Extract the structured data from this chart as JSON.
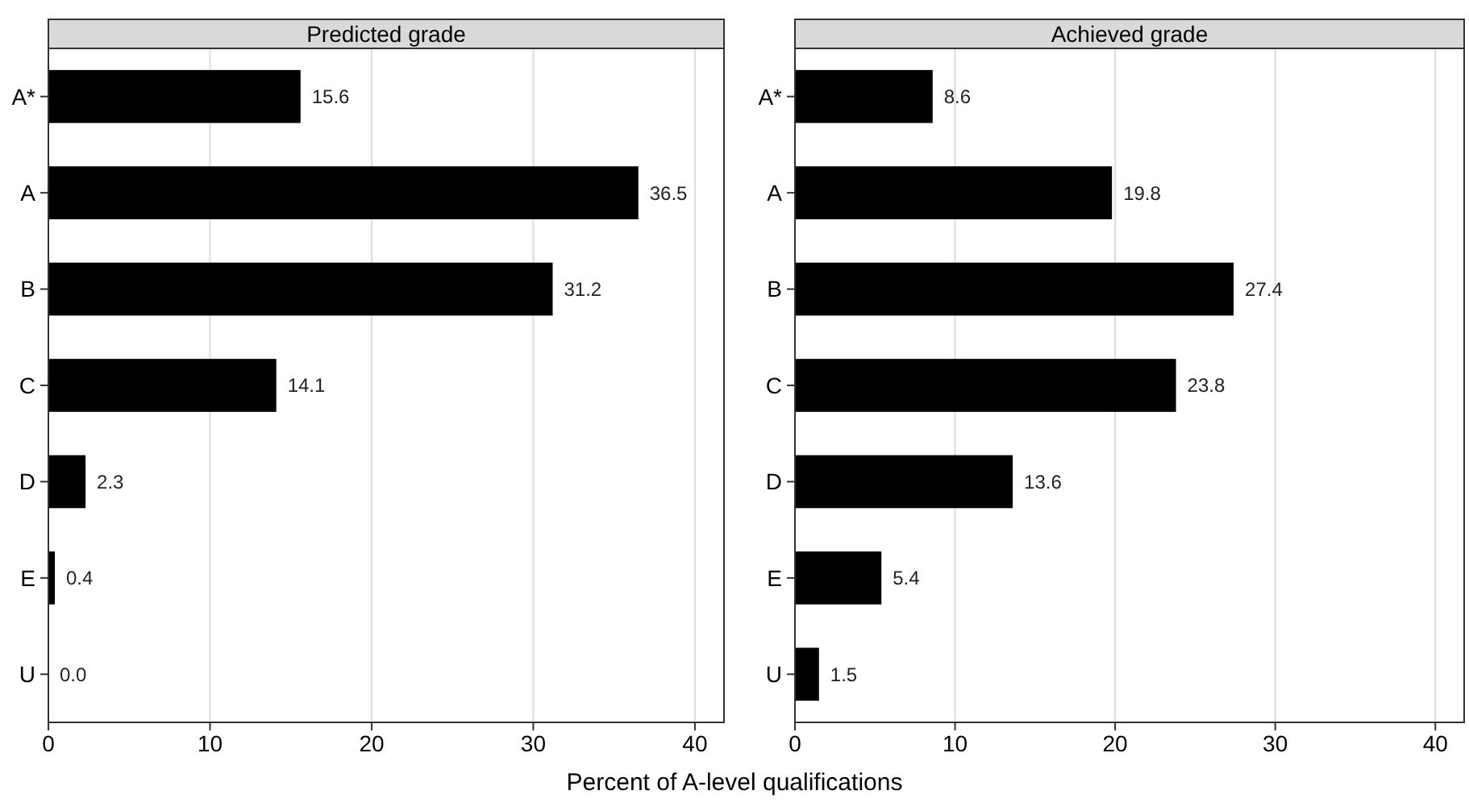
{
  "chart_data": [
    {
      "type": "bar",
      "orientation": "horizontal",
      "title": "Predicted grade",
      "xlabel": "Percent of A-level qualifications",
      "categories": [
        "A*",
        "A",
        "B",
        "C",
        "D",
        "E",
        "U"
      ],
      "values": [
        15.6,
        36.5,
        31.2,
        14.1,
        2.3,
        0.4,
        0.0
      ],
      "value_labels": [
        "15.6",
        "36.5",
        "31.2",
        "14.1",
        "2.3",
        "0.4",
        "0.0"
      ],
      "color": "#000000",
      "xlim": [
        0,
        41.8
      ],
      "xticks": [
        0,
        10,
        20,
        30,
        40
      ],
      "grid": "x"
    },
    {
      "type": "bar",
      "orientation": "horizontal",
      "title": "Achieved grade",
      "categories": [
        "A*",
        "A",
        "B",
        "C",
        "D",
        "E",
        "U"
      ],
      "values": [
        8.6,
        19.8,
        27.4,
        23.8,
        13.6,
        5.4,
        1.5
      ],
      "value_labels": [
        "8.6",
        "19.8",
        "27.4",
        "23.8",
        "13.6",
        "5.4",
        "1.5"
      ],
      "color": "#000000",
      "xlim": [
        0,
        41.8
      ],
      "xticks": [
        0,
        10,
        20,
        30,
        40
      ],
      "grid": "x"
    }
  ]
}
